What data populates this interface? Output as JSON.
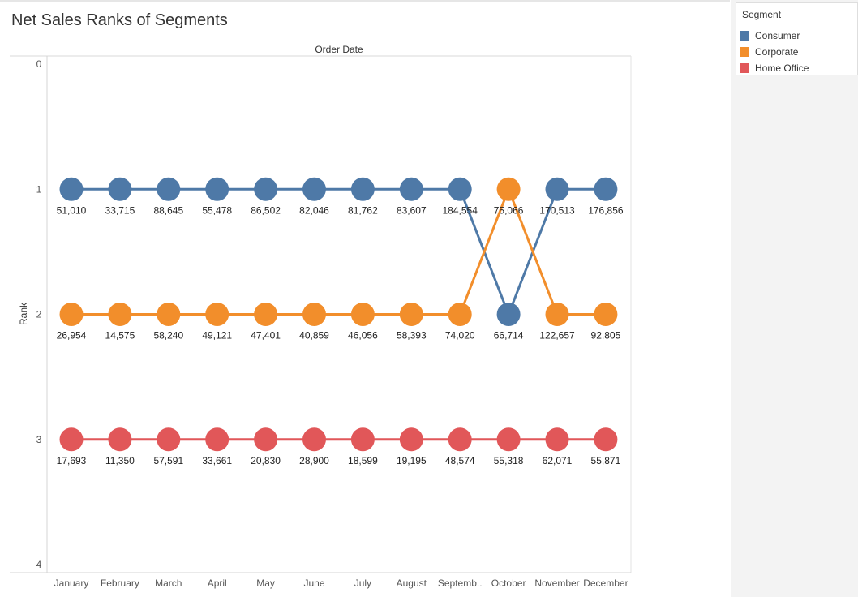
{
  "title": "Net Sales Ranks of Segments",
  "legend": {
    "title": "Segment",
    "items": [
      {
        "label": "Consumer",
        "color": "#4e79a7"
      },
      {
        "label": "Corporate",
        "color": "#f28e2b"
      },
      {
        "label": "Home Office",
        "color": "#e15759"
      }
    ]
  },
  "chart_data": {
    "type": "line",
    "title": "Net Sales Ranks of Segments",
    "column_header": "Order Date",
    "ylabel": "Rank",
    "ylim": [
      0,
      4
    ],
    "yticks": [
      "0",
      "1",
      "2",
      "3",
      "4"
    ],
    "categories": [
      "January",
      "February",
      "March",
      "April",
      "May",
      "June",
      "July",
      "August",
      "Septemb..",
      "October",
      "November",
      "December"
    ],
    "series": [
      {
        "name": "Consumer",
        "color": "#4e79a7",
        "ranks": [
          1,
          1,
          1,
          1,
          1,
          1,
          1,
          1,
          1,
          2,
          1,
          1
        ],
        "labels": [
          "51,010",
          "33,715",
          "88,645",
          "55,478",
          "86,502",
          "82,046",
          "81,762",
          "83,607",
          "184,554",
          "66,714",
          "170,513",
          "176,856"
        ]
      },
      {
        "name": "Corporate",
        "color": "#f28e2b",
        "ranks": [
          2,
          2,
          2,
          2,
          2,
          2,
          2,
          2,
          2,
          1,
          2,
          2
        ],
        "labels": [
          "26,954",
          "14,575",
          "58,240",
          "49,121",
          "47,401",
          "40,859",
          "46,056",
          "58,393",
          "74,020",
          "75,066",
          "122,657",
          "92,805"
        ]
      },
      {
        "name": "Home Office",
        "color": "#e15759",
        "ranks": [
          3,
          3,
          3,
          3,
          3,
          3,
          3,
          3,
          3,
          3,
          3,
          3
        ],
        "labels": [
          "17,693",
          "11,350",
          "57,591",
          "33,661",
          "20,830",
          "28,900",
          "18,599",
          "19,195",
          "48,574",
          "55,318",
          "62,071",
          "55,871"
        ]
      }
    ]
  }
}
